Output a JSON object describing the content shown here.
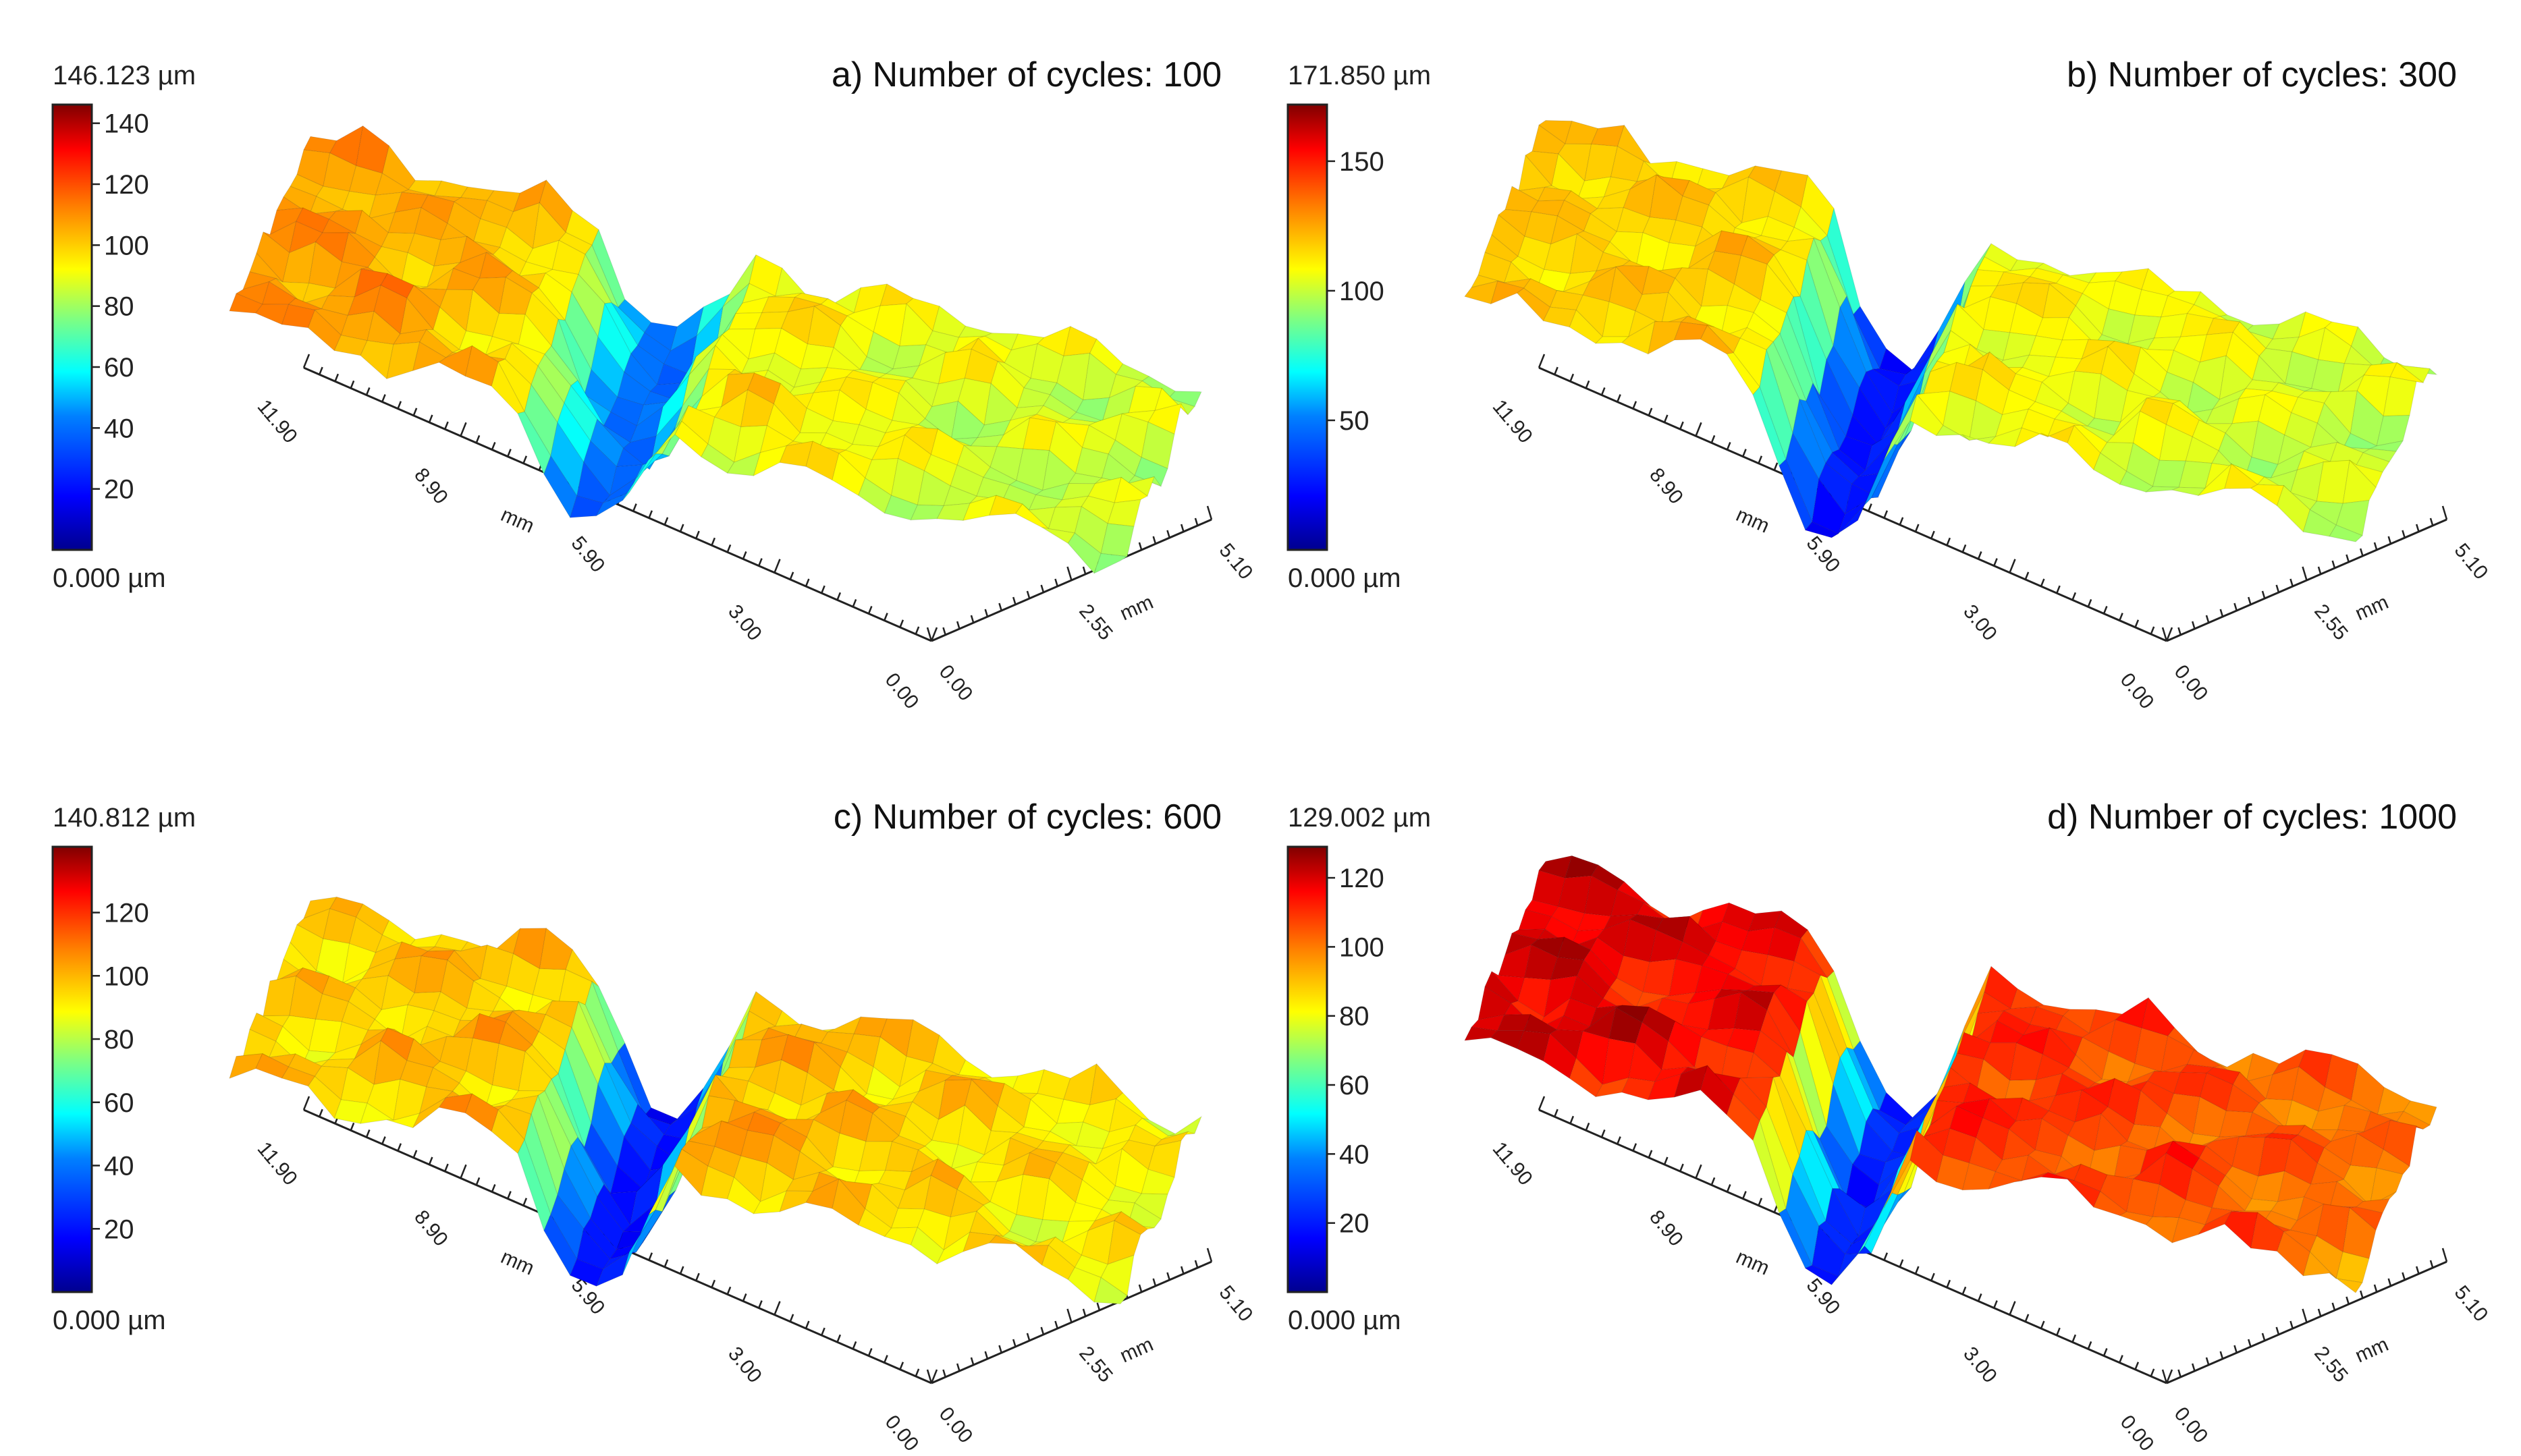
{
  "figure": {
    "unit_um": "µm",
    "colors": {
      "scale": [
        "#00008f",
        "#0000ff",
        "#0080ff",
        "#00ffff",
        "#80ff80",
        "#ffff00",
        "#ff8000",
        "#ff0000",
        "#800000"
      ]
    }
  },
  "chart_data": [
    {
      "type": "heatmap",
      "title": "a) Number of cycles: 100",
      "colorbar": {
        "max_label": "146.123 µm",
        "min_label": "0.000 µm",
        "ticks": [
          "140",
          "120",
          "100",
          "80",
          "60",
          "40",
          "20"
        ],
        "tick_values": [
          140,
          120,
          100,
          80,
          60,
          40,
          20
        ],
        "range": [
          0,
          146.123
        ]
      },
      "axis_long": {
        "ticks": [
          "11.90",
          "8.90",
          "5.90",
          "3.00",
          "0.00"
        ],
        "label": "mm"
      },
      "axis_short": {
        "ticks": [
          "0.00",
          "2.55",
          "5.10"
        ],
        "label": "mm"
      },
      "surface": {
        "dominant_height_um": 95,
        "groove_min_um": 35,
        "left_plateau_um": 110
      }
    },
    {
      "type": "heatmap",
      "title": "b) Number of cycles: 300",
      "colorbar": {
        "max_label": "171.850 µm",
        "min_label": "0.000 µm",
        "ticks": [
          "150",
          "100",
          "50"
        ],
        "tick_values": [
          150,
          100,
          50
        ],
        "range": [
          0,
          171.85
        ]
      },
      "axis_long": {
        "ticks": [
          "11.90",
          "8.90",
          "5.90",
          "3.00",
          "0.00"
        ],
        "label": "mm"
      },
      "axis_short": {
        "ticks": [
          "0.00",
          "2.55",
          "5.10"
        ],
        "label": "mm"
      },
      "surface": {
        "dominant_height_um": 110,
        "groove_min_um": 20,
        "left_plateau_um": 120
      }
    },
    {
      "type": "heatmap",
      "title": "c) Number of cycles: 600",
      "colorbar": {
        "max_label": "140.812 µm",
        "min_label": "0.000 µm",
        "ticks": [
          "120",
          "100",
          "80",
          "60",
          "40",
          "20"
        ],
        "tick_values": [
          120,
          100,
          80,
          60,
          40,
          20
        ],
        "range": [
          0,
          140.812
        ]
      },
      "axis_long": {
        "ticks": [
          "11.90",
          "8.90",
          "5.90",
          "3.00",
          "0.00"
        ],
        "label": "mm"
      },
      "axis_short": {
        "ticks": [
          "0.00",
          "2.55",
          "5.10"
        ],
        "label": "mm"
      },
      "surface": {
        "dominant_height_um": 100,
        "groove_min_um": 15,
        "left_plateau_um": 95
      }
    },
    {
      "type": "heatmap",
      "title": "d) Number of cycles: 1000",
      "colorbar": {
        "max_label": "129.002 µm",
        "min_label": "0.000 µm",
        "ticks": [
          "120",
          "100",
          "80",
          "60",
          "40",
          "20"
        ],
        "tick_values": [
          120,
          100,
          80,
          60,
          40,
          20
        ],
        "range": [
          0,
          129.002
        ]
      },
      "axis_long": {
        "ticks": [
          "11.90",
          "8.90",
          "5.90",
          "3.00",
          "0.00"
        ],
        "label": "mm"
      },
      "axis_short": {
        "ticks": [
          "0.00",
          "2.55",
          "5.10"
        ],
        "label": "mm"
      },
      "surface": {
        "dominant_height_um": 110,
        "groove_min_um": 15,
        "left_plateau_um": 120
      }
    }
  ]
}
